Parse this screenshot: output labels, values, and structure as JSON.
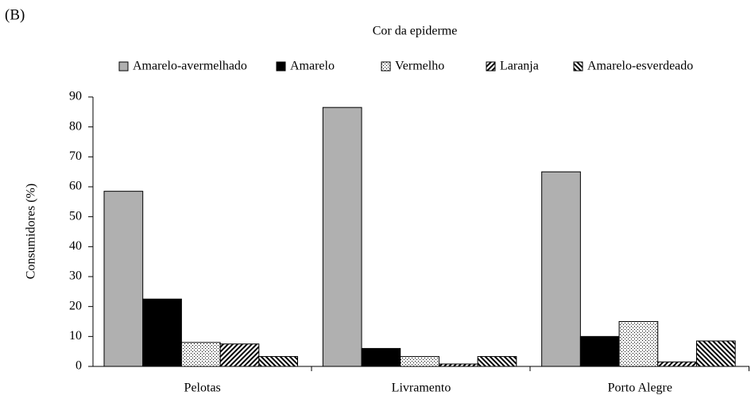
{
  "chart_data": {
    "type": "grouped_bar",
    "panel_label": "(B)",
    "title": "Cor da epiderme",
    "y_label": "Consumidores (%)",
    "categories": [
      "Pelotas",
      "Livramento",
      "Porto Alegre"
    ],
    "series": [
      {
        "name": "Amarelo-avermelhado",
        "color": "#b0b0b0",
        "pattern": "solid",
        "values": [
          58.5,
          86.5,
          65
        ]
      },
      {
        "name": "Amarelo",
        "color": "#000000",
        "pattern": "solid",
        "values": [
          22.5,
          6,
          10
        ]
      },
      {
        "name": "Vermelho",
        "color": "#000000",
        "pattern": "dots",
        "values": [
          8,
          3.3,
          15
        ]
      },
      {
        "name": "Laranja",
        "color": "#000000",
        "pattern": "hatch",
        "values": [
          7.5,
          0.8,
          1.5
        ]
      },
      {
        "name": "Amarelo-esverdeado",
        "color": "#000000",
        "pattern": "backhatch",
        "values": [
          3.3,
          3.3,
          8.5
        ]
      }
    ],
    "ylim": [
      0,
      90
    ],
    "yticks": [
      0,
      10,
      20,
      30,
      40,
      50,
      60,
      70,
      80,
      90
    ],
    "legend": "top"
  }
}
